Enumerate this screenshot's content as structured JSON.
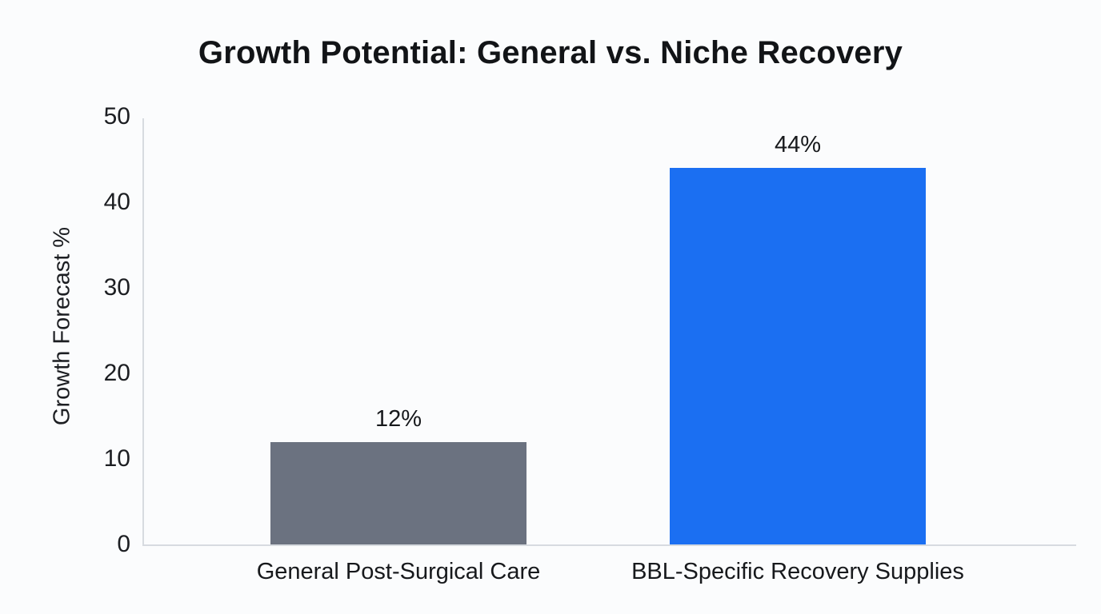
{
  "page": {
    "background_color": "#fbfcfd"
  },
  "chart_data": {
    "type": "bar",
    "title": "Growth Potential: General vs. Niche Recovery",
    "xlabel": "",
    "ylabel": "Growth Forecast %",
    "categories": [
      "General Post-Surgical Care",
      "BBL-Specific Recovery Supplies"
    ],
    "values": [
      12,
      44
    ],
    "value_labels": [
      "12%",
      "44%"
    ],
    "bar_colors": [
      "#6b7280",
      "#1b6ff2"
    ],
    "ylim": [
      0,
      50
    ],
    "yticks": [
      0,
      10,
      20,
      30,
      40,
      50
    ],
    "grid": false,
    "legend": "none"
  }
}
